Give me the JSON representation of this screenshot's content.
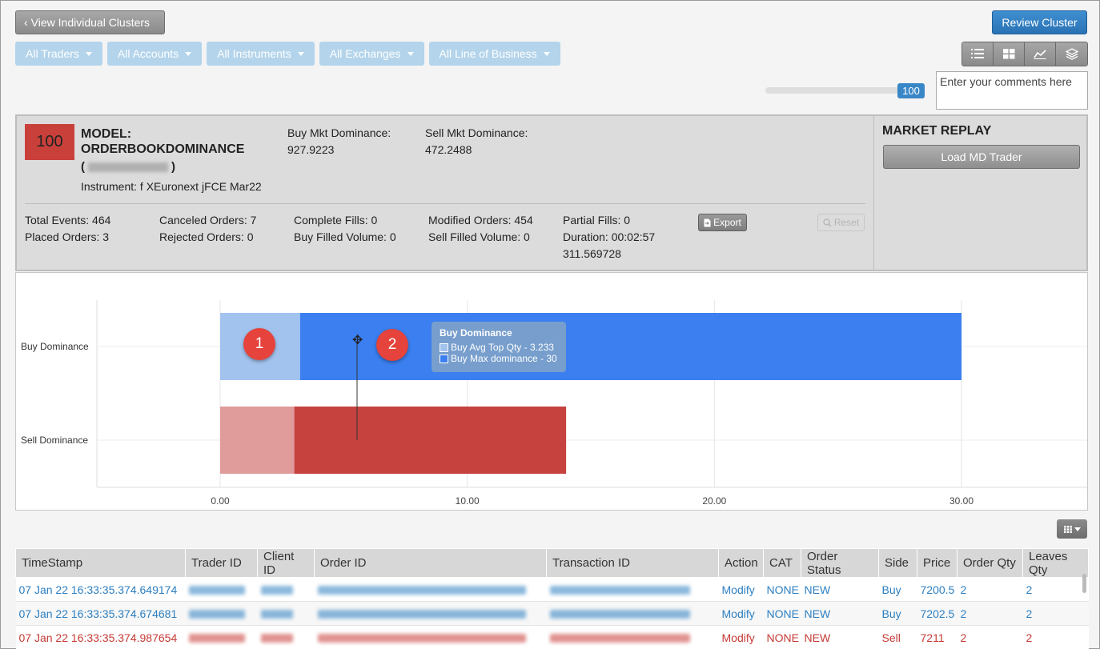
{
  "header": {
    "back_button": "View Individual Clusters",
    "review_button": "Review Cluster"
  },
  "filters": [
    "All Traders",
    "All Accounts",
    "All Instruments",
    "All Exchanges",
    "All Line of Business"
  ],
  "view_icons": [
    "list-icon",
    "grid-icon",
    "chart-icon",
    "layers-icon"
  ],
  "slider": {
    "value": "100",
    "fraction": 1.0
  },
  "comments": {
    "placeholder": "Enter your comments here"
  },
  "model": {
    "score": "100",
    "title_line1": "MODEL:",
    "title_line2": "ORDERBOOKDOMINANCE",
    "name_open": "(",
    "name_close": ")",
    "instrument": "Instrument: f XEuronext jFCE Mar22",
    "buy_mkt_label": "Buy Mkt Dominance:",
    "buy_mkt_value": "927.9223",
    "sell_mkt_label": "Sell Mkt Dominance:",
    "sell_mkt_value": "472.2488",
    "stats": {
      "total_events": "Total Events: 464",
      "placed_orders": "Placed Orders: 3",
      "canceled_orders": "Canceled Orders: 7",
      "rejected_orders": "Rejected Orders: 0",
      "complete_fills": "Complete Fills: 0",
      "buy_filled_volume": "Buy Filled Volume: 0",
      "modified_orders": "Modified Orders: 454",
      "sell_filled_volume": "Sell Filled Volume: 0",
      "partial_fills": "Partial Fills: 0",
      "duration": "Duration: 00:02:57",
      "duration_extra": "311.569728"
    },
    "export_label": "Export",
    "reset_label": "Reset"
  },
  "replay": {
    "title": "MARKET REPLAY",
    "load_button": "Load MD Trader"
  },
  "chart_data": {
    "type": "bar",
    "orientation": "horizontal",
    "stacked": true,
    "categories": [
      "Buy Dominance",
      "Sell Dominance"
    ],
    "series": [
      {
        "name": "Avg Top Qty",
        "values": [
          3.233,
          3.0
        ],
        "colors": [
          "#a3c3ef",
          "#e09b9b"
        ]
      },
      {
        "name": "Max dominance",
        "values": [
          26.767,
          11.0
        ],
        "colors": [
          "#3b7ff0",
          "#c5423f"
        ]
      }
    ],
    "xlim": [
      -5,
      35
    ],
    "xticks": [
      0,
      10,
      20,
      30
    ],
    "xtick_labels": [
      "0.00",
      "10.00",
      "20.00",
      "30.00"
    ],
    "grid": true,
    "tooltip": {
      "title": "Buy Dominance",
      "rows": [
        "Buy Avg Top Qty - 3.233",
        "Buy Max dominance - 30"
      ]
    },
    "annotations": [
      "1",
      "2"
    ]
  },
  "table": {
    "columns": [
      "TimeStamp",
      "Trader ID",
      "Client ID",
      "Order ID",
      "Transaction ID",
      "Action",
      "CAT",
      "Order Status",
      "Side",
      "Price",
      "Order Qty",
      "Leaves Qty"
    ],
    "rows": [
      {
        "timestamp": "07 Jan 22 16:33:35.374.649174",
        "action": "Modify",
        "cat": "NONE",
        "status": "NEW",
        "side": "Buy",
        "price": "7200.5",
        "order_qty": "2",
        "leaves_qty": "2",
        "color": "#2d7fc1"
      },
      {
        "timestamp": "07 Jan 22 16:33:35.374.674681",
        "action": "Modify",
        "cat": "NONE",
        "status": "NEW",
        "side": "Buy",
        "price": "7202.5",
        "order_qty": "2",
        "leaves_qty": "2",
        "color": "#2d7fc1"
      },
      {
        "timestamp": "07 Jan 22 16:33:35.374.987654",
        "action": "Modify",
        "cat": "NONE",
        "status": "NEW",
        "side": "Sell",
        "price": "7211",
        "order_qty": "2",
        "leaves_qty": "2",
        "color": "#c63a35"
      }
    ]
  }
}
